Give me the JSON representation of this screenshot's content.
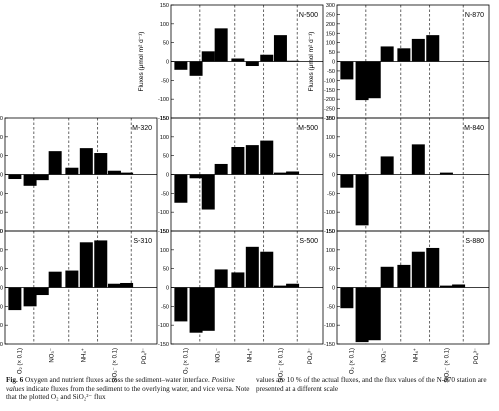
{
  "chart_data": {
    "type": "bar",
    "ylabel": "Fluxes (μmol m² d⁻¹)",
    "category_labels": [
      "O₂ (× 0.1)",
      "NO₃⁻",
      "NH₄⁺",
      "SiO₂⁻ (× 0.1)",
      "PO₄³⁻"
    ],
    "panels": [
      {
        "label": "N-500",
        "ylim": [
          -150,
          150
        ],
        "yticks": [
          -150,
          -100,
          -50,
          0,
          50,
          100,
          150
        ],
        "values": [
          -22,
          -38,
          27,
          88,
          8,
          -12,
          18,
          70,
          2
        ]
      },
      {
        "label": "N-870",
        "ylim": [
          -300,
          300
        ],
        "yticks": [
          -300,
          -250,
          -200,
          -150,
          -100,
          -50,
          0,
          50,
          100,
          150,
          200,
          250,
          300
        ],
        "values": [
          -95,
          -205,
          -195,
          80,
          70,
          120,
          140,
          0,
          0
        ]
      },
      {
        "label": "M-320",
        "ylim": [
          -150,
          150
        ],
        "yticks": [
          -150,
          -100,
          -50,
          0,
          50,
          100,
          150
        ],
        "values": [
          -12,
          -30,
          -15,
          62,
          18,
          70,
          57,
          10,
          5
        ]
      },
      {
        "label": "M-500",
        "ylim": [
          -150,
          150
        ],
        "yticks": [
          -150,
          -100,
          -50,
          0,
          50,
          100,
          150
        ],
        "values": [
          -75,
          -10,
          -93,
          28,
          73,
          78,
          90,
          5,
          8
        ]
      },
      {
        "label": "M-840",
        "ylim": [
          -150,
          150
        ],
        "yticks": [
          -150,
          -100,
          -50,
          0,
          50,
          100,
          150
        ],
        "values": [
          -35,
          -135,
          0,
          48,
          0,
          80,
          0,
          5,
          0
        ]
      },
      {
        "label": "S-310",
        "ylim": [
          -150,
          150
        ],
        "yticks": [
          -150,
          -100,
          -50,
          0,
          50,
          100,
          150
        ],
        "values": [
          -60,
          -50,
          -20,
          42,
          45,
          120,
          125,
          10,
          12
        ]
      },
      {
        "label": "S-500",
        "ylim": [
          -150,
          150
        ],
        "yticks": [
          -150,
          -100,
          -50,
          0,
          50,
          100,
          150
        ],
        "values": [
          -90,
          -120,
          -115,
          48,
          40,
          108,
          95,
          5,
          10
        ]
      },
      {
        "label": "S-880",
        "ylim": [
          -150,
          150
        ],
        "yticks": [
          -150,
          -100,
          -50,
          0,
          50,
          100,
          150
        ],
        "values": [
          -55,
          -145,
          -140,
          55,
          60,
          95,
          105,
          5,
          8
        ]
      }
    ]
  },
  "caption": {
    "fig_label": "Fig. 6",
    "line1": "Oxygen and nutrient fluxes across the sediment–water interface.",
    "italic": "Positive values",
    "line2": "indicate fluxes from the sediment to the overlying water, and vice versa. Note that the plotted O₂ and SiO₂²⁻ flux",
    "right": "values are 10 % of the actual fluxes, and the flux values of the N-870 station are presented at a different scale"
  }
}
